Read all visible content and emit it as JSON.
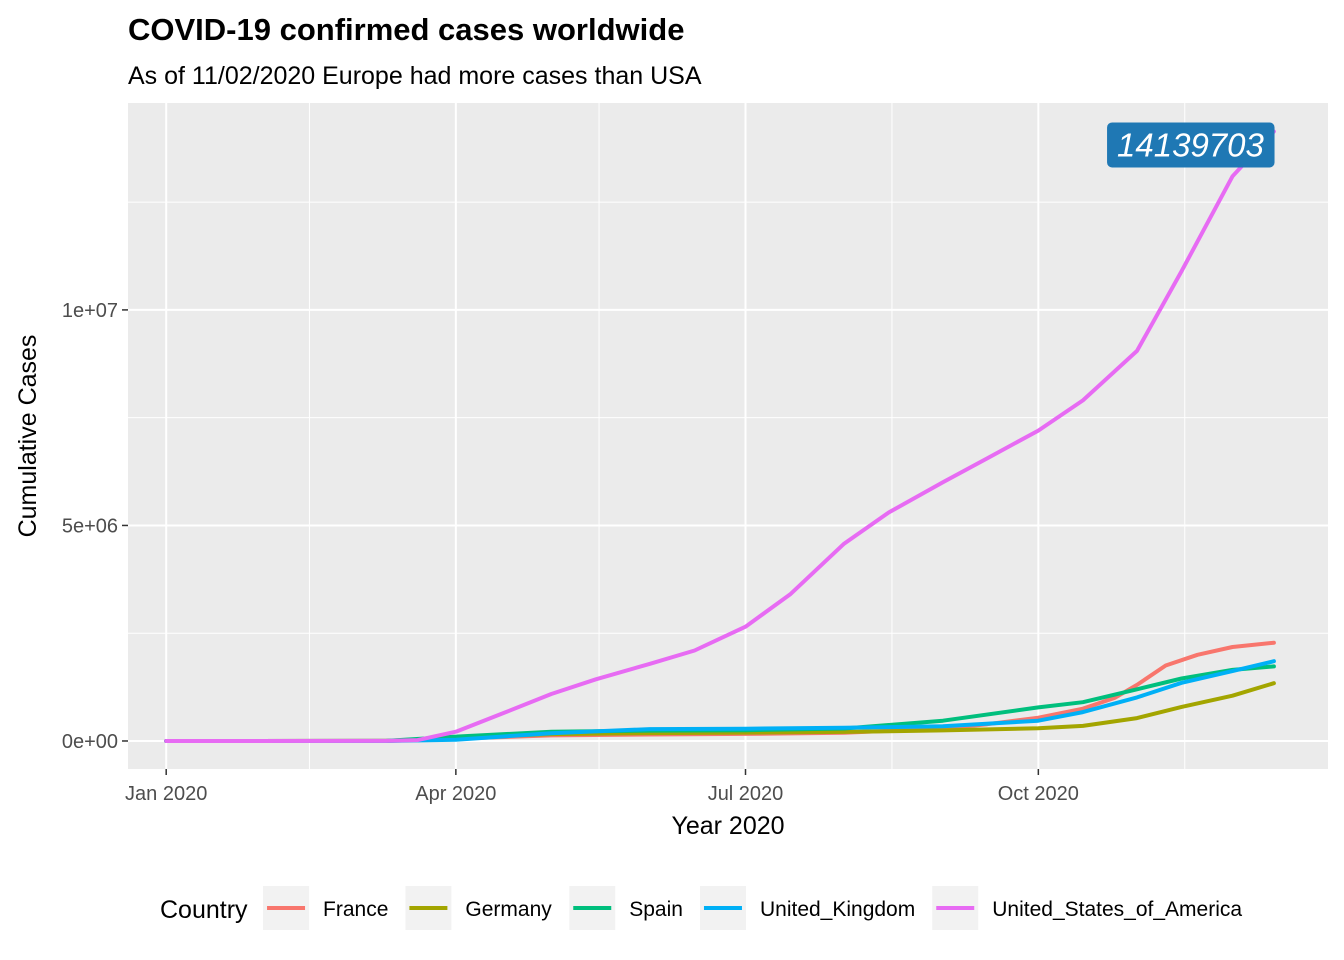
{
  "chart_data": {
    "type": "line",
    "title": "COVID-19 confirmed cases worldwide",
    "subtitle": "As of 11/02/2020 Europe had more cases than USA",
    "xlabel": "Year 2020",
    "ylabel": "Cumulative Cases",
    "x_ticks": [
      {
        "date": "2020-01-01",
        "label": "Jan 2020"
      },
      {
        "date": "2020-04-01",
        "label": "Apr 2020"
      },
      {
        "date": "2020-07-01",
        "label": "Jul 2020"
      },
      {
        "date": "2020-10-01",
        "label": "Oct 2020"
      }
    ],
    "y_ticks": [
      {
        "value": 0,
        "label": "0e+00"
      },
      {
        "value": 5000000,
        "label": "5e+06"
      },
      {
        "value": 10000000,
        "label": "1e+07"
      }
    ],
    "xlim": [
      "2019-12-20",
      "2020-12-31"
    ],
    "ylim": [
      -650000,
      14800000
    ],
    "grid": true,
    "legend": {
      "title": "Country",
      "position": "bottom"
    },
    "annotation": {
      "text": "14139703",
      "date": "2020-12-14",
      "value": 14139703
    },
    "series": [
      {
        "name": "France",
        "color": "#F8766D",
        "points": [
          [
            "2020-01-01",
            0
          ],
          [
            "2020-03-10",
            1800
          ],
          [
            "2020-04-01",
            56000
          ],
          [
            "2020-05-01",
            130000
          ],
          [
            "2020-06-01",
            150000
          ],
          [
            "2020-07-01",
            165000
          ],
          [
            "2020-08-01",
            190000
          ],
          [
            "2020-09-01",
            290000
          ],
          [
            "2020-09-15",
            390000
          ],
          [
            "2020-10-01",
            540000
          ],
          [
            "2020-10-15",
            750000
          ],
          [
            "2020-10-25",
            1000000
          ],
          [
            "2020-11-01",
            1300000
          ],
          [
            "2020-11-10",
            1750000
          ],
          [
            "2020-11-20",
            2000000
          ],
          [
            "2020-12-01",
            2180000
          ],
          [
            "2020-12-14",
            2280000
          ]
        ]
      },
      {
        "name": "Germany",
        "color": "#A3A500",
        "points": [
          [
            "2020-01-01",
            0
          ],
          [
            "2020-03-10",
            1300
          ],
          [
            "2020-04-01",
            73000
          ],
          [
            "2020-05-01",
            160000
          ],
          [
            "2020-06-01",
            182000
          ],
          [
            "2020-07-01",
            195000
          ],
          [
            "2020-08-01",
            210000
          ],
          [
            "2020-09-01",
            245000
          ],
          [
            "2020-10-01",
            295000
          ],
          [
            "2020-10-15",
            350000
          ],
          [
            "2020-11-01",
            530000
          ],
          [
            "2020-11-15",
            790000
          ],
          [
            "2020-12-01",
            1050000
          ],
          [
            "2020-12-14",
            1340000
          ]
        ]
      },
      {
        "name": "Spain",
        "color": "#00BF7D",
        "points": [
          [
            "2020-01-01",
            0
          ],
          [
            "2020-03-10",
            1600
          ],
          [
            "2020-04-01",
            102000
          ],
          [
            "2020-05-01",
            213000
          ],
          [
            "2020-06-01",
            240000
          ],
          [
            "2020-07-01",
            250000
          ],
          [
            "2020-08-01",
            290000
          ],
          [
            "2020-09-01",
            470000
          ],
          [
            "2020-10-01",
            780000
          ],
          [
            "2020-10-15",
            900000
          ],
          [
            "2020-11-01",
            1200000
          ],
          [
            "2020-11-15",
            1450000
          ],
          [
            "2020-12-01",
            1650000
          ],
          [
            "2020-12-14",
            1730000
          ]
        ]
      },
      {
        "name": "United_Kingdom",
        "color": "#00B0F6",
        "points": [
          [
            "2020-01-01",
            0
          ],
          [
            "2020-03-10",
            400
          ],
          [
            "2020-04-01",
            30000
          ],
          [
            "2020-05-01",
            180000
          ],
          [
            "2020-06-01",
            275000
          ],
          [
            "2020-07-01",
            285000
          ],
          [
            "2020-08-01",
            305000
          ],
          [
            "2020-09-01",
            340000
          ],
          [
            "2020-10-01",
            470000
          ],
          [
            "2020-10-15",
            670000
          ],
          [
            "2020-11-01",
            1010000
          ],
          [
            "2020-11-15",
            1350000
          ],
          [
            "2020-12-01",
            1620000
          ],
          [
            "2020-12-14",
            1850000
          ]
        ]
      },
      {
        "name": "United_States_of_America",
        "color": "#E76BF3",
        "points": [
          [
            "2020-01-01",
            0
          ],
          [
            "2020-03-10",
            1000
          ],
          [
            "2020-03-20",
            20000
          ],
          [
            "2020-04-01",
            215000
          ],
          [
            "2020-04-15",
            620000
          ],
          [
            "2020-05-01",
            1090000
          ],
          [
            "2020-05-15",
            1430000
          ],
          [
            "2020-06-01",
            1790000
          ],
          [
            "2020-06-15",
            2100000
          ],
          [
            "2020-07-01",
            2650000
          ],
          [
            "2020-07-15",
            3400000
          ],
          [
            "2020-08-01",
            4580000
          ],
          [
            "2020-08-15",
            5300000
          ],
          [
            "2020-09-01",
            6000000
          ],
          [
            "2020-09-15",
            6560000
          ],
          [
            "2020-10-01",
            7200000
          ],
          [
            "2020-10-15",
            7900000
          ],
          [
            "2020-11-01",
            9050000
          ],
          [
            "2020-11-15",
            10900000
          ],
          [
            "2020-12-01",
            13100000
          ],
          [
            "2020-12-14",
            14139703
          ]
        ]
      }
    ]
  }
}
